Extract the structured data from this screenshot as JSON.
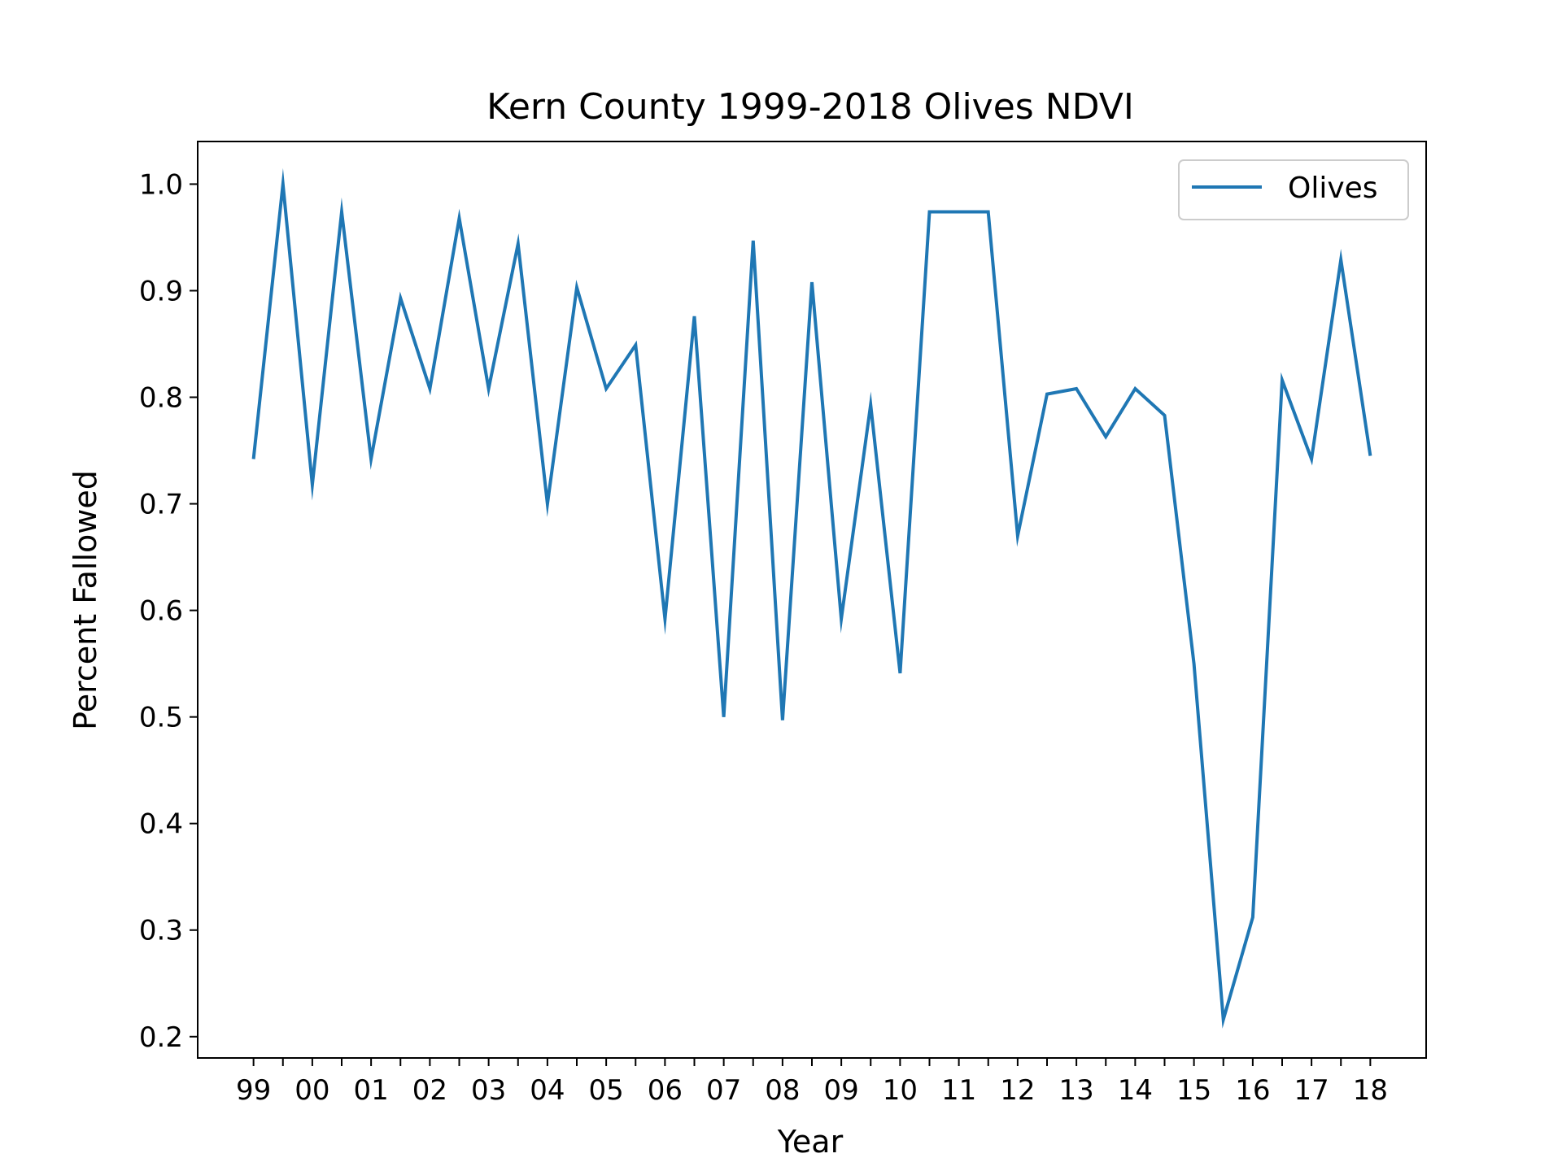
{
  "chart_data": {
    "type": "line",
    "title": "Kern County 1999-2018 Olives NDVI",
    "xlabel": "Year",
    "ylabel": "Percent Fallowed",
    "x_tick_labels": [
      "99",
      "00",
      "01",
      "02",
      "03",
      "04",
      "05",
      "06",
      "07",
      "08",
      "09",
      "10",
      "11",
      "12",
      "13",
      "14",
      "15",
      "16",
      "17",
      "18"
    ],
    "y_ticks": [
      0.2,
      0.3,
      0.4,
      0.5,
      0.6,
      0.7,
      0.8,
      0.9,
      1.0
    ],
    "y_tick_labels": [
      "0.2",
      "0.3",
      "0.4",
      "0.5",
      "0.6",
      "0.7",
      "0.8",
      "0.9",
      "1.0"
    ],
    "ylim": [
      0.18,
      1.04
    ],
    "xlim": [
      1998.05,
      2018.95
    ],
    "grid": false,
    "legend_position": "top-right",
    "series": [
      {
        "name": "Olives",
        "color": "#1f77b4",
        "x": [
          1999,
          1999.5,
          2000,
          2000.5,
          2001,
          2001.5,
          2002,
          2002.5,
          2003,
          2003.5,
          2004,
          2004.5,
          2005,
          2005.5,
          2006,
          2006.5,
          2007,
          2007.5,
          2008,
          2008.5,
          2009,
          2009.5,
          2010,
          2010.5,
          2011,
          2011.5,
          2012,
          2012.5,
          2013,
          2013.5,
          2014,
          2014.5,
          2015,
          2015.5,
          2016,
          2016.5,
          2017,
          2017.5,
          2018
        ],
        "values": [
          0.742,
          1.0,
          0.718,
          0.974,
          0.742,
          0.893,
          0.808,
          0.968,
          0.808,
          0.944,
          0.7,
          0.903,
          0.808,
          0.849,
          0.592,
          0.876,
          0.5,
          0.947,
          0.497,
          0.908,
          0.592,
          0.793,
          0.541,
          0.974,
          0.974,
          0.974,
          0.67,
          0.803,
          0.808,
          0.763,
          0.808,
          0.783,
          0.55,
          0.216,
          0.312,
          0.816,
          0.742,
          0.929,
          0.745
        ]
      }
    ]
  }
}
